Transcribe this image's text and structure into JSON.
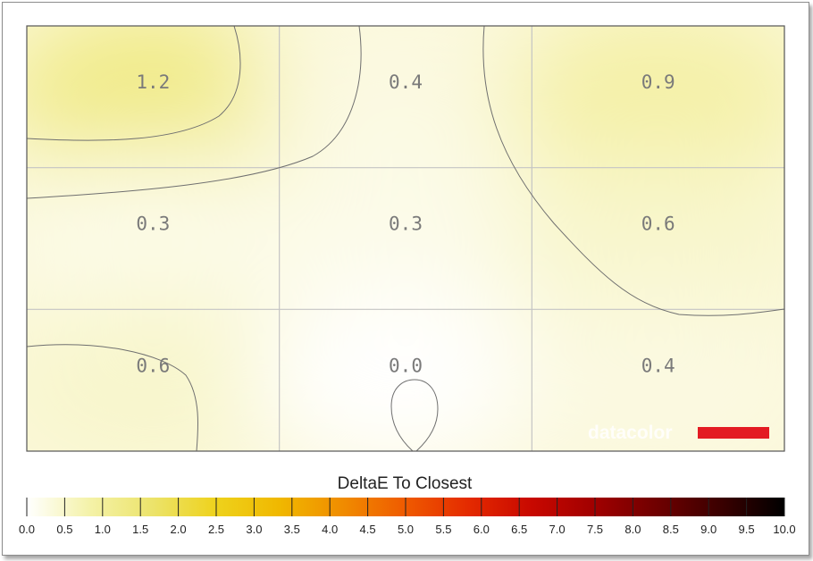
{
  "chart_data": {
    "type": "heatmap",
    "title": "",
    "rows": 3,
    "cols": 3,
    "values": [
      [
        1.2,
        0.4,
        0.9
      ],
      [
        0.3,
        0.3,
        0.6
      ],
      [
        0.6,
        0.0,
        0.4
      ]
    ],
    "labels": [
      [
        "1.2",
        "0.4",
        "0.9"
      ],
      [
        "0.3",
        "0.3",
        "0.6"
      ],
      [
        "0.6",
        "0.0",
        "0.4"
      ]
    ],
    "contour_lines": true,
    "grid": true,
    "colorbar": {
      "title": "DeltaE To Closest",
      "min": 0.0,
      "max": 10.0,
      "ticks": [
        "0.0",
        "0.5",
        "1.0",
        "1.5",
        "2.0",
        "2.5",
        "3.0",
        "3.5",
        "4.0",
        "4.5",
        "5.0",
        "5.5",
        "6.0",
        "6.5",
        "7.0",
        "7.5",
        "8.0",
        "8.5",
        "9.0",
        "9.5",
        "10.0"
      ],
      "colors": [
        "#ffffff",
        "#f4f2a8",
        "#ece36a",
        "#eed21c",
        "#f0b800",
        "#f08c00",
        "#ef5a00",
        "#e42a00",
        "#c80800",
        "#a00000",
        "#6e0000",
        "#3a0000",
        "#000000"
      ]
    }
  },
  "watermark": {
    "text": "datacolor",
    "accent_color": "#e31b23"
  }
}
